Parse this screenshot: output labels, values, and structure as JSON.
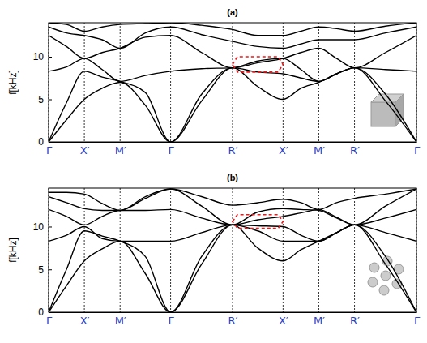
{
  "chart_data": [
    {
      "type": "line",
      "title": "(a)",
      "y_label": "f[kHz]",
      "x": [
        0,
        0.5,
        1,
        1.5,
        2,
        2.707,
        3.414,
        4.28,
        5.146,
        5.853,
        6.56,
        7.06,
        7.56,
        8.06,
        8.56,
        9.427,
        10.293
      ],
      "xlim": [
        0,
        10.293
      ],
      "xticks": [
        {
          "value": 0,
          "label": "Γ"
        },
        {
          "value": 1,
          "label": "X′"
        },
        {
          "value": 2,
          "label": "M′"
        },
        {
          "value": 3.414,
          "label": "Γ"
        },
        {
          "value": 5.146,
          "label": "R′"
        },
        {
          "value": 6.56,
          "label": "X′"
        },
        {
          "value": 7.56,
          "label": "M′"
        },
        {
          "value": 8.56,
          "label": "R′"
        },
        {
          "value": 10.293,
          "label": "Γ"
        }
      ],
      "ylim": [
        0,
        14
      ],
      "yticks": [
        0,
        5,
        10
      ],
      "grid": true,
      "series": [
        {
          "color": "#000000",
          "values": [
            0,
            2.6,
            5,
            6.3,
            7,
            4.3,
            0,
            4.8,
            8.7,
            6.5,
            5,
            6.3,
            7,
            8,
            8.7,
            4.8,
            0
          ]
        },
        {
          "color": "#000000",
          "values": [
            0,
            4.6,
            8.3,
            7.6,
            7.1,
            5.8,
            0,
            5.6,
            8.7,
            8.2,
            8,
            7.5,
            7.1,
            8,
            8.7,
            5.6,
            0
          ]
        },
        {
          "color": "#000000",
          "values": [
            8.3,
            8.8,
            9.8,
            8.5,
            7.1,
            7.8,
            8.3,
            8.6,
            8.7,
            9.5,
            9.8,
            8.5,
            7.1,
            8,
            8.7,
            8.5,
            8.3
          ]
        },
        {
          "color": "#000000",
          "values": [
            12.5,
            11.2,
            9.8,
            10.5,
            11,
            12.3,
            12.5,
            10.5,
            8.7,
            9.3,
            9.8,
            10.5,
            11,
            9.8,
            8.7,
            10.5,
            12.5
          ]
        },
        {
          "color": "#000000",
          "values": [
            13.5,
            12.8,
            12.5,
            12,
            11,
            12.8,
            13.5,
            12.6,
            11.8,
            11.2,
            11,
            11.5,
            12,
            12,
            12,
            12.8,
            13.5
          ]
        },
        {
          "color": "#000000",
          "values": [
            14,
            13.8,
            13,
            13.5,
            13.8,
            13.9,
            14,
            13.7,
            13.2,
            12.5,
            12.5,
            13,
            13.5,
            13.3,
            13,
            13.6,
            14
          ]
        }
      ],
      "region": {
        "x": [
          5.146,
          6.56
        ],
        "y": [
          8.2,
          10
        ],
        "color": "#e41a1c"
      }
    },
    {
      "type": "line",
      "title": "(b)",
      "y_label": "f[kHz]",
      "x": [
        0,
        0.5,
        1,
        1.5,
        2,
        2.707,
        3.414,
        4.28,
        5.146,
        5.853,
        6.56,
        7.06,
        7.56,
        8.06,
        8.56,
        9.427,
        10.293
      ],
      "xlim": [
        0,
        10.293
      ],
      "xticks": [
        {
          "value": 0,
          "label": "Γ"
        },
        {
          "value": 1,
          "label": "X′"
        },
        {
          "value": 2,
          "label": "M′"
        },
        {
          "value": 3.414,
          "label": "Γ"
        },
        {
          "value": 5.146,
          "label": "R′"
        },
        {
          "value": 6.56,
          "label": "X′"
        },
        {
          "value": 7.56,
          "label": "M′"
        },
        {
          "value": 8.56,
          "label": "R′"
        },
        {
          "value": 10.293,
          "label": "Γ"
        }
      ],
      "ylim": [
        0,
        14.5
      ],
      "yticks": [
        0,
        5,
        10
      ],
      "grid": true,
      "series": [
        {
          "color": "#000000",
          "values": [
            0,
            3.1,
            6,
            7.4,
            8.3,
            4.5,
            0,
            5.6,
            10.2,
            7.5,
            6,
            7.3,
            8.3,
            9.3,
            10.2,
            5.6,
            0
          ]
        },
        {
          "color": "#000000",
          "values": [
            0,
            5,
            9.5,
            8.9,
            8.3,
            6.5,
            0,
            6.5,
            10.2,
            9.5,
            8.3,
            8.3,
            8.3,
            9.3,
            10.2,
            6.5,
            0
          ]
        },
        {
          "color": "#000000",
          "values": [
            8.3,
            9,
            10,
            8.6,
            8.3,
            8.3,
            8.3,
            9.3,
            10.2,
            10.1,
            10,
            9,
            8.3,
            9.3,
            10.2,
            9.3,
            8.3
          ]
        },
        {
          "color": "#000000",
          "values": [
            12,
            11.2,
            10.2,
            11.2,
            11.9,
            11.9,
            12,
            11,
            10.2,
            10.8,
            11.2,
            11.6,
            12,
            11.1,
            10.2,
            11,
            12
          ]
        },
        {
          "color": "#000000",
          "values": [
            13.5,
            12.8,
            12.1,
            11.9,
            11.9,
            13.3,
            14.4,
            12.4,
            10.2,
            11.7,
            12.1,
            12,
            11.9,
            11,
            10.2,
            12.4,
            14.4
          ]
        },
        {
          "color": "#000000",
          "values": [
            14,
            14,
            13.8,
            12.7,
            11.9,
            13.5,
            14.4,
            13.5,
            12.5,
            12.8,
            13.2,
            12.8,
            12,
            12.8,
            13.3,
            13.8,
            14.4
          ]
        }
      ],
      "region": {
        "x": [
          5.146,
          6.56
        ],
        "y": [
          9.8,
          11.4
        ],
        "color": "#e41a1c"
      }
    }
  ]
}
